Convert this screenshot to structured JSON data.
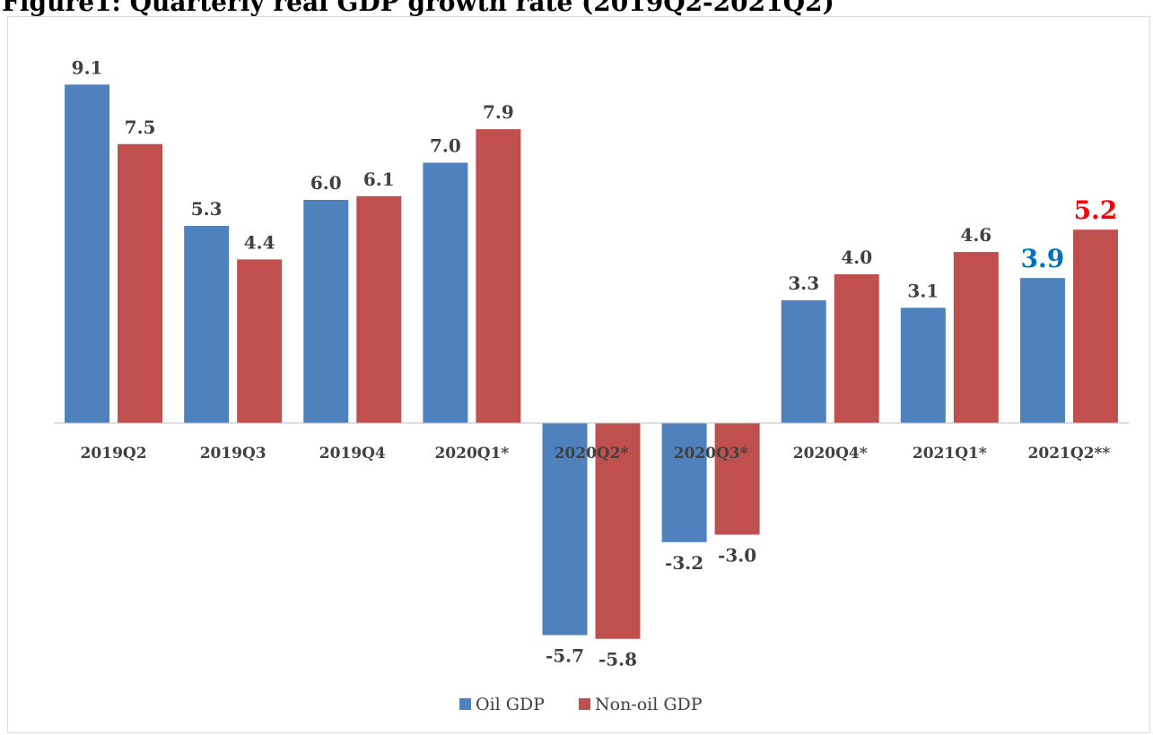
{
  "page": {
    "title": "Figure1: Quarterly real GDP growth rate (2019Q2-2021Q2)"
  },
  "colors": {
    "oil": "#4f81bd",
    "nonoil": "#c0504d",
    "oil_highlight": "#0070c0",
    "nonoil_highlight": "#ff0000"
  },
  "chart_data": {
    "type": "bar",
    "title": "Figure1: Quarterly real GDP growth rate (2019Q2-2021Q2)",
    "xlabel": "",
    "ylabel": "",
    "categories": [
      "2019Q2",
      "2019Q3",
      "2019Q4",
      "2020Q1*",
      "2020Q2*",
      "2020Q3*",
      "2020Q4*",
      "2021Q1*",
      "2021Q2**"
    ],
    "series": [
      {
        "name": "Oil GDP",
        "values": [
          9.1,
          5.3,
          6.0,
          7.0,
          -5.7,
          -3.2,
          3.3,
          3.1,
          3.9
        ]
      },
      {
        "name": "Non-oil GDP",
        "values": [
          7.5,
          4.4,
          6.1,
          7.9,
          -5.8,
          -3.0,
          4.0,
          4.6,
          5.2
        ]
      }
    ],
    "ylim": [
      -7.5,
      10
    ],
    "grid": false,
    "legend": "bottom",
    "data_labels": true,
    "highlight_last_category": true
  }
}
